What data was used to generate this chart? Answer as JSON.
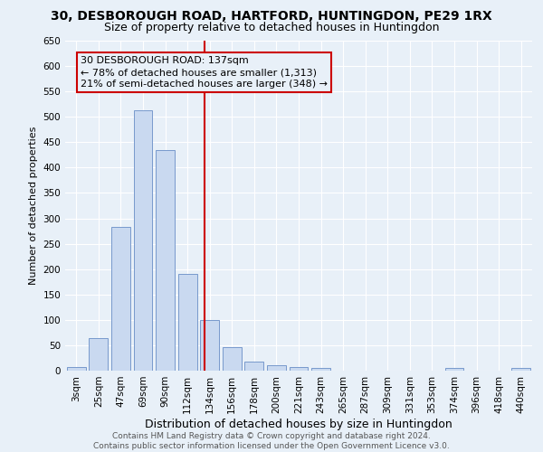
{
  "title": "30, DESBOROUGH ROAD, HARTFORD, HUNTINGDON, PE29 1RX",
  "subtitle": "Size of property relative to detached houses in Huntingdon",
  "xlabel": "Distribution of detached houses by size in Huntingdon",
  "ylabel": "Number of detached properties",
  "footer_line1": "Contains HM Land Registry data © Crown copyright and database right 2024.",
  "footer_line2": "Contains public sector information licensed under the Open Government Licence v3.0.",
  "categories": [
    "3sqm",
    "25sqm",
    "47sqm",
    "69sqm",
    "90sqm",
    "112sqm",
    "134sqm",
    "156sqm",
    "178sqm",
    "200sqm",
    "221sqm",
    "243sqm",
    "265sqm",
    "287sqm",
    "309sqm",
    "331sqm",
    "353sqm",
    "374sqm",
    "396sqm",
    "418sqm",
    "440sqm"
  ],
  "values": [
    8,
    65,
    283,
    513,
    435,
    191,
    100,
    46,
    18,
    11,
    8,
    5,
    0,
    0,
    0,
    0,
    0,
    5,
    0,
    0,
    5
  ],
  "bar_color": "#c9d9f0",
  "bar_edge_color": "#7799cc",
  "background_color": "#e8f0f8",
  "grid_color": "#ffffff",
  "vline_x": 5.77,
  "vline_color": "#cc0000",
  "annotation_text": "30 DESBOROUGH ROAD: 137sqm\n← 78% of detached houses are smaller (1,313)\n21% of semi-detached houses are larger (348) →",
  "annotation_box_facecolor": "#e8f0f8",
  "annotation_box_edgecolor": "#cc0000",
  "annotation_text_color": "#000000",
  "ylim": [
    0,
    650
  ],
  "yticks": [
    0,
    50,
    100,
    150,
    200,
    250,
    300,
    350,
    400,
    450,
    500,
    550,
    600,
    650
  ],
  "title_fontsize": 10,
  "subtitle_fontsize": 9,
  "xlabel_fontsize": 9,
  "ylabel_fontsize": 8,
  "tick_fontsize": 7.5,
  "annotation_fontsize": 8,
  "footer_fontsize": 6.5
}
